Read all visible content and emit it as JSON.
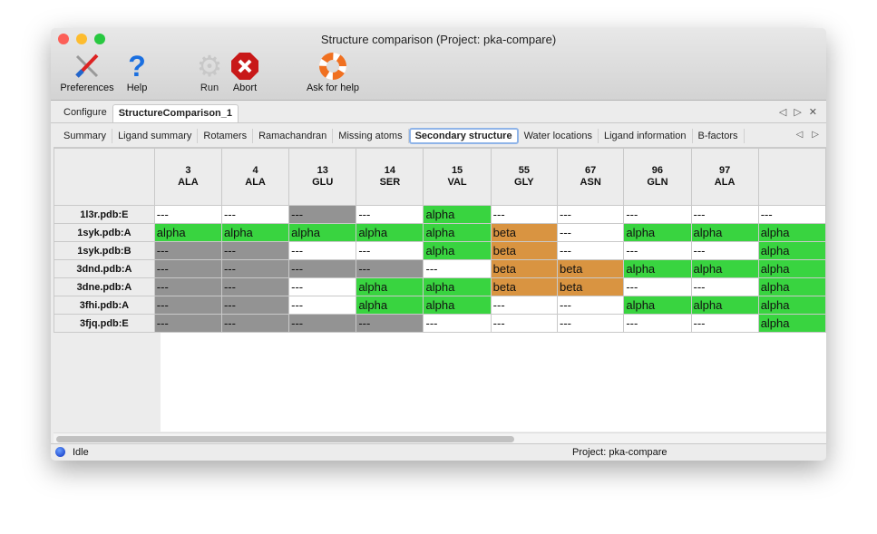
{
  "window": {
    "title": "Structure comparison (Project: pka-compare)"
  },
  "toolbar": {
    "preferences": "Preferences",
    "help": "Help",
    "run": "Run",
    "abort": "Abort",
    "ask_for_help": "Ask for help"
  },
  "main_tabs": [
    {
      "label": "Configure",
      "active": false
    },
    {
      "label": "StructureComparison_1",
      "active": true
    }
  ],
  "sub_tabs": [
    {
      "label": "Summary"
    },
    {
      "label": "Ligand summary"
    },
    {
      "label": "Rotamers"
    },
    {
      "label": "Ramachandran"
    },
    {
      "label": "Missing atoms"
    },
    {
      "label": "Secondary structure",
      "active": true
    },
    {
      "label": "Water locations"
    },
    {
      "label": "Ligand information"
    },
    {
      "label": "B-factors"
    }
  ],
  "colors": {
    "alpha": "#39d440",
    "beta": "#d99441",
    "absent": "#939393",
    "empty": "#ffffff"
  },
  "table": {
    "columns": [
      {
        "num": "3",
        "res": "ALA"
      },
      {
        "num": "4",
        "res": "ALA"
      },
      {
        "num": "13",
        "res": "GLU"
      },
      {
        "num": "14",
        "res": "SER"
      },
      {
        "num": "15",
        "res": "VAL"
      },
      {
        "num": "55",
        "res": "GLY"
      },
      {
        "num": "67",
        "res": "ASN"
      },
      {
        "num": "96",
        "res": "GLN"
      },
      {
        "num": "97",
        "res": "ALA"
      },
      {
        "num": "",
        "res": ""
      }
    ],
    "rows": [
      {
        "label": "1l3r.pdb:E",
        "cells": [
          "empty",
          "empty",
          "absent",
          "empty",
          "alpha",
          "empty",
          "empty",
          "empty",
          "empty",
          "empty"
        ]
      },
      {
        "label": "1syk.pdb:A",
        "cells": [
          "alpha",
          "alpha",
          "alpha",
          "alpha",
          "alpha",
          "beta",
          "empty",
          "alpha",
          "alpha",
          "alpha"
        ]
      },
      {
        "label": "1syk.pdb:B",
        "cells": [
          "absent",
          "absent",
          "empty",
          "empty",
          "alpha",
          "beta",
          "empty",
          "empty",
          "empty",
          "alpha"
        ]
      },
      {
        "label": "3dnd.pdb:A",
        "cells": [
          "absent",
          "absent",
          "absent",
          "absent",
          "empty",
          "beta",
          "beta",
          "alpha",
          "alpha",
          "alpha"
        ]
      },
      {
        "label": "3dne.pdb:A",
        "cells": [
          "absent",
          "absent",
          "empty",
          "alpha",
          "alpha",
          "beta",
          "beta",
          "empty",
          "empty",
          "alpha"
        ]
      },
      {
        "label": "3fhi.pdb:A",
        "cells": [
          "absent",
          "absent",
          "empty",
          "alpha",
          "alpha",
          "empty",
          "empty",
          "alpha",
          "alpha",
          "alpha"
        ]
      },
      {
        "label": "3fjq.pdb:E",
        "cells": [
          "absent",
          "absent",
          "absent",
          "absent",
          "empty",
          "empty",
          "empty",
          "empty",
          "empty",
          "alpha"
        ]
      }
    ],
    "labels": {
      "alpha": "alpha",
      "beta": "beta",
      "empty": "---",
      "absent": "---"
    }
  },
  "status": {
    "state": "Idle",
    "project": "Project: pka-compare"
  }
}
